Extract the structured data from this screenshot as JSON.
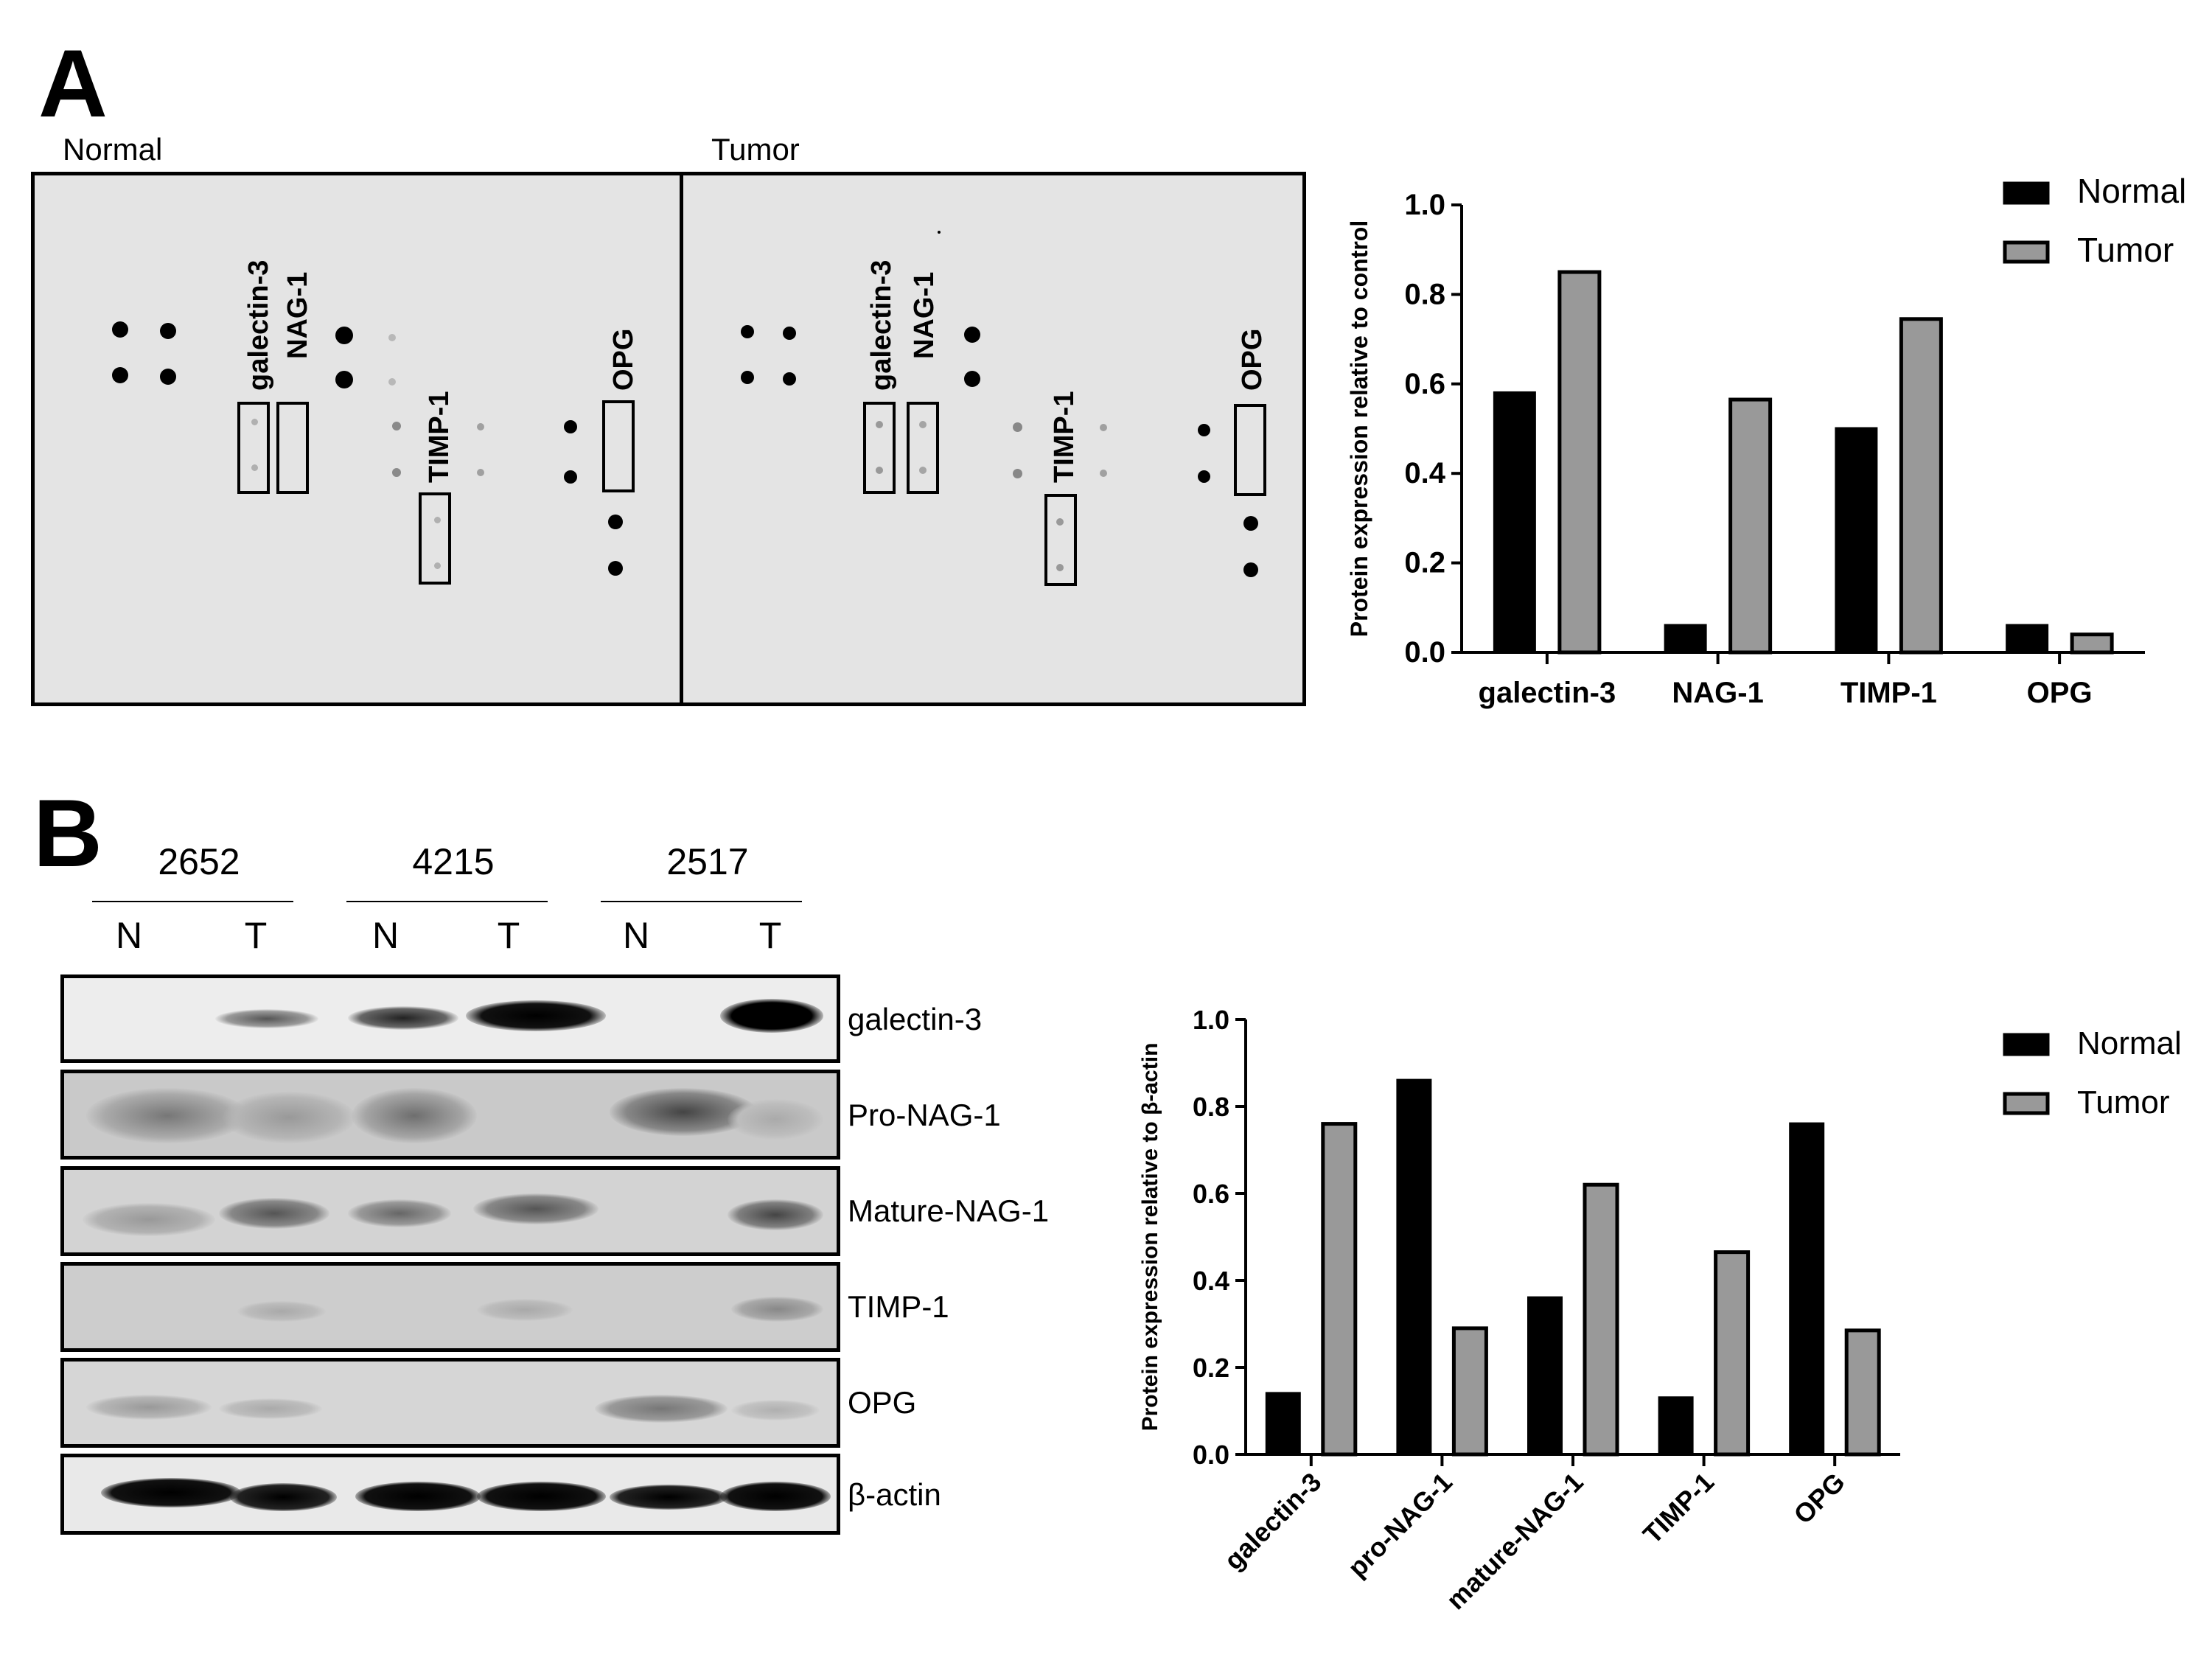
{
  "panels": {
    "a_label": "A",
    "b_label": "B"
  },
  "array": {
    "normal_label": "Normal",
    "tumor_label": "Tumor",
    "spot_labels": [
      "galectin-3",
      "NAG-1",
      "TIMP-1",
      "OPG"
    ]
  },
  "blot": {
    "samples": [
      "2652",
      "4215",
      "2517"
    ],
    "lanes": [
      "N",
      "T",
      "N",
      "T",
      "N",
      "T"
    ],
    "rows": [
      "galectin-3",
      "Pro-NAG-1",
      "Mature-NAG-1",
      "TIMP-1",
      "OPG",
      "β-actin"
    ]
  },
  "colors": {
    "normal": "#000000",
    "tumor": "#999999",
    "array_bg": "#e4e4e4"
  },
  "chart_data": [
    {
      "type": "bar",
      "categories": [
        "galectin-3",
        "NAG-1",
        "TIMP-1",
        "OPG"
      ],
      "series": [
        {
          "name": "Normal",
          "values": [
            0.58,
            0.06,
            0.5,
            0.06
          ]
        },
        {
          "name": "Tumor",
          "values": [
            0.85,
            0.565,
            0.745,
            0.04
          ]
        }
      ],
      "title": "",
      "xlabel": "",
      "ylabel": "Protein expression relative to control",
      "ylim": [
        0,
        1.0
      ],
      "yticks": [
        "0.0",
        "0.2",
        "0.4",
        "0.6",
        "0.8",
        "1.0"
      ],
      "legend": "top-right",
      "grid": false
    },
    {
      "type": "bar",
      "categories": [
        "galectin-3",
        "pro-NAG-1",
        "mature-NAG-1",
        "TIMP-1",
        "OPG"
      ],
      "series": [
        {
          "name": "Normal",
          "values": [
            0.14,
            0.86,
            0.36,
            0.13,
            0.76
          ]
        },
        {
          "name": "Tumor",
          "values": [
            0.76,
            0.29,
            0.62,
            0.465,
            0.285
          ]
        }
      ],
      "title": "",
      "xlabel": "",
      "ylabel": "Protein expression relative to β-actin",
      "ylim": [
        0,
        1.0
      ],
      "yticks": [
        "0.0",
        "0.2",
        "0.4",
        "0.6",
        "0.8",
        "1.0"
      ],
      "legend": "top-right",
      "grid": false
    }
  ]
}
